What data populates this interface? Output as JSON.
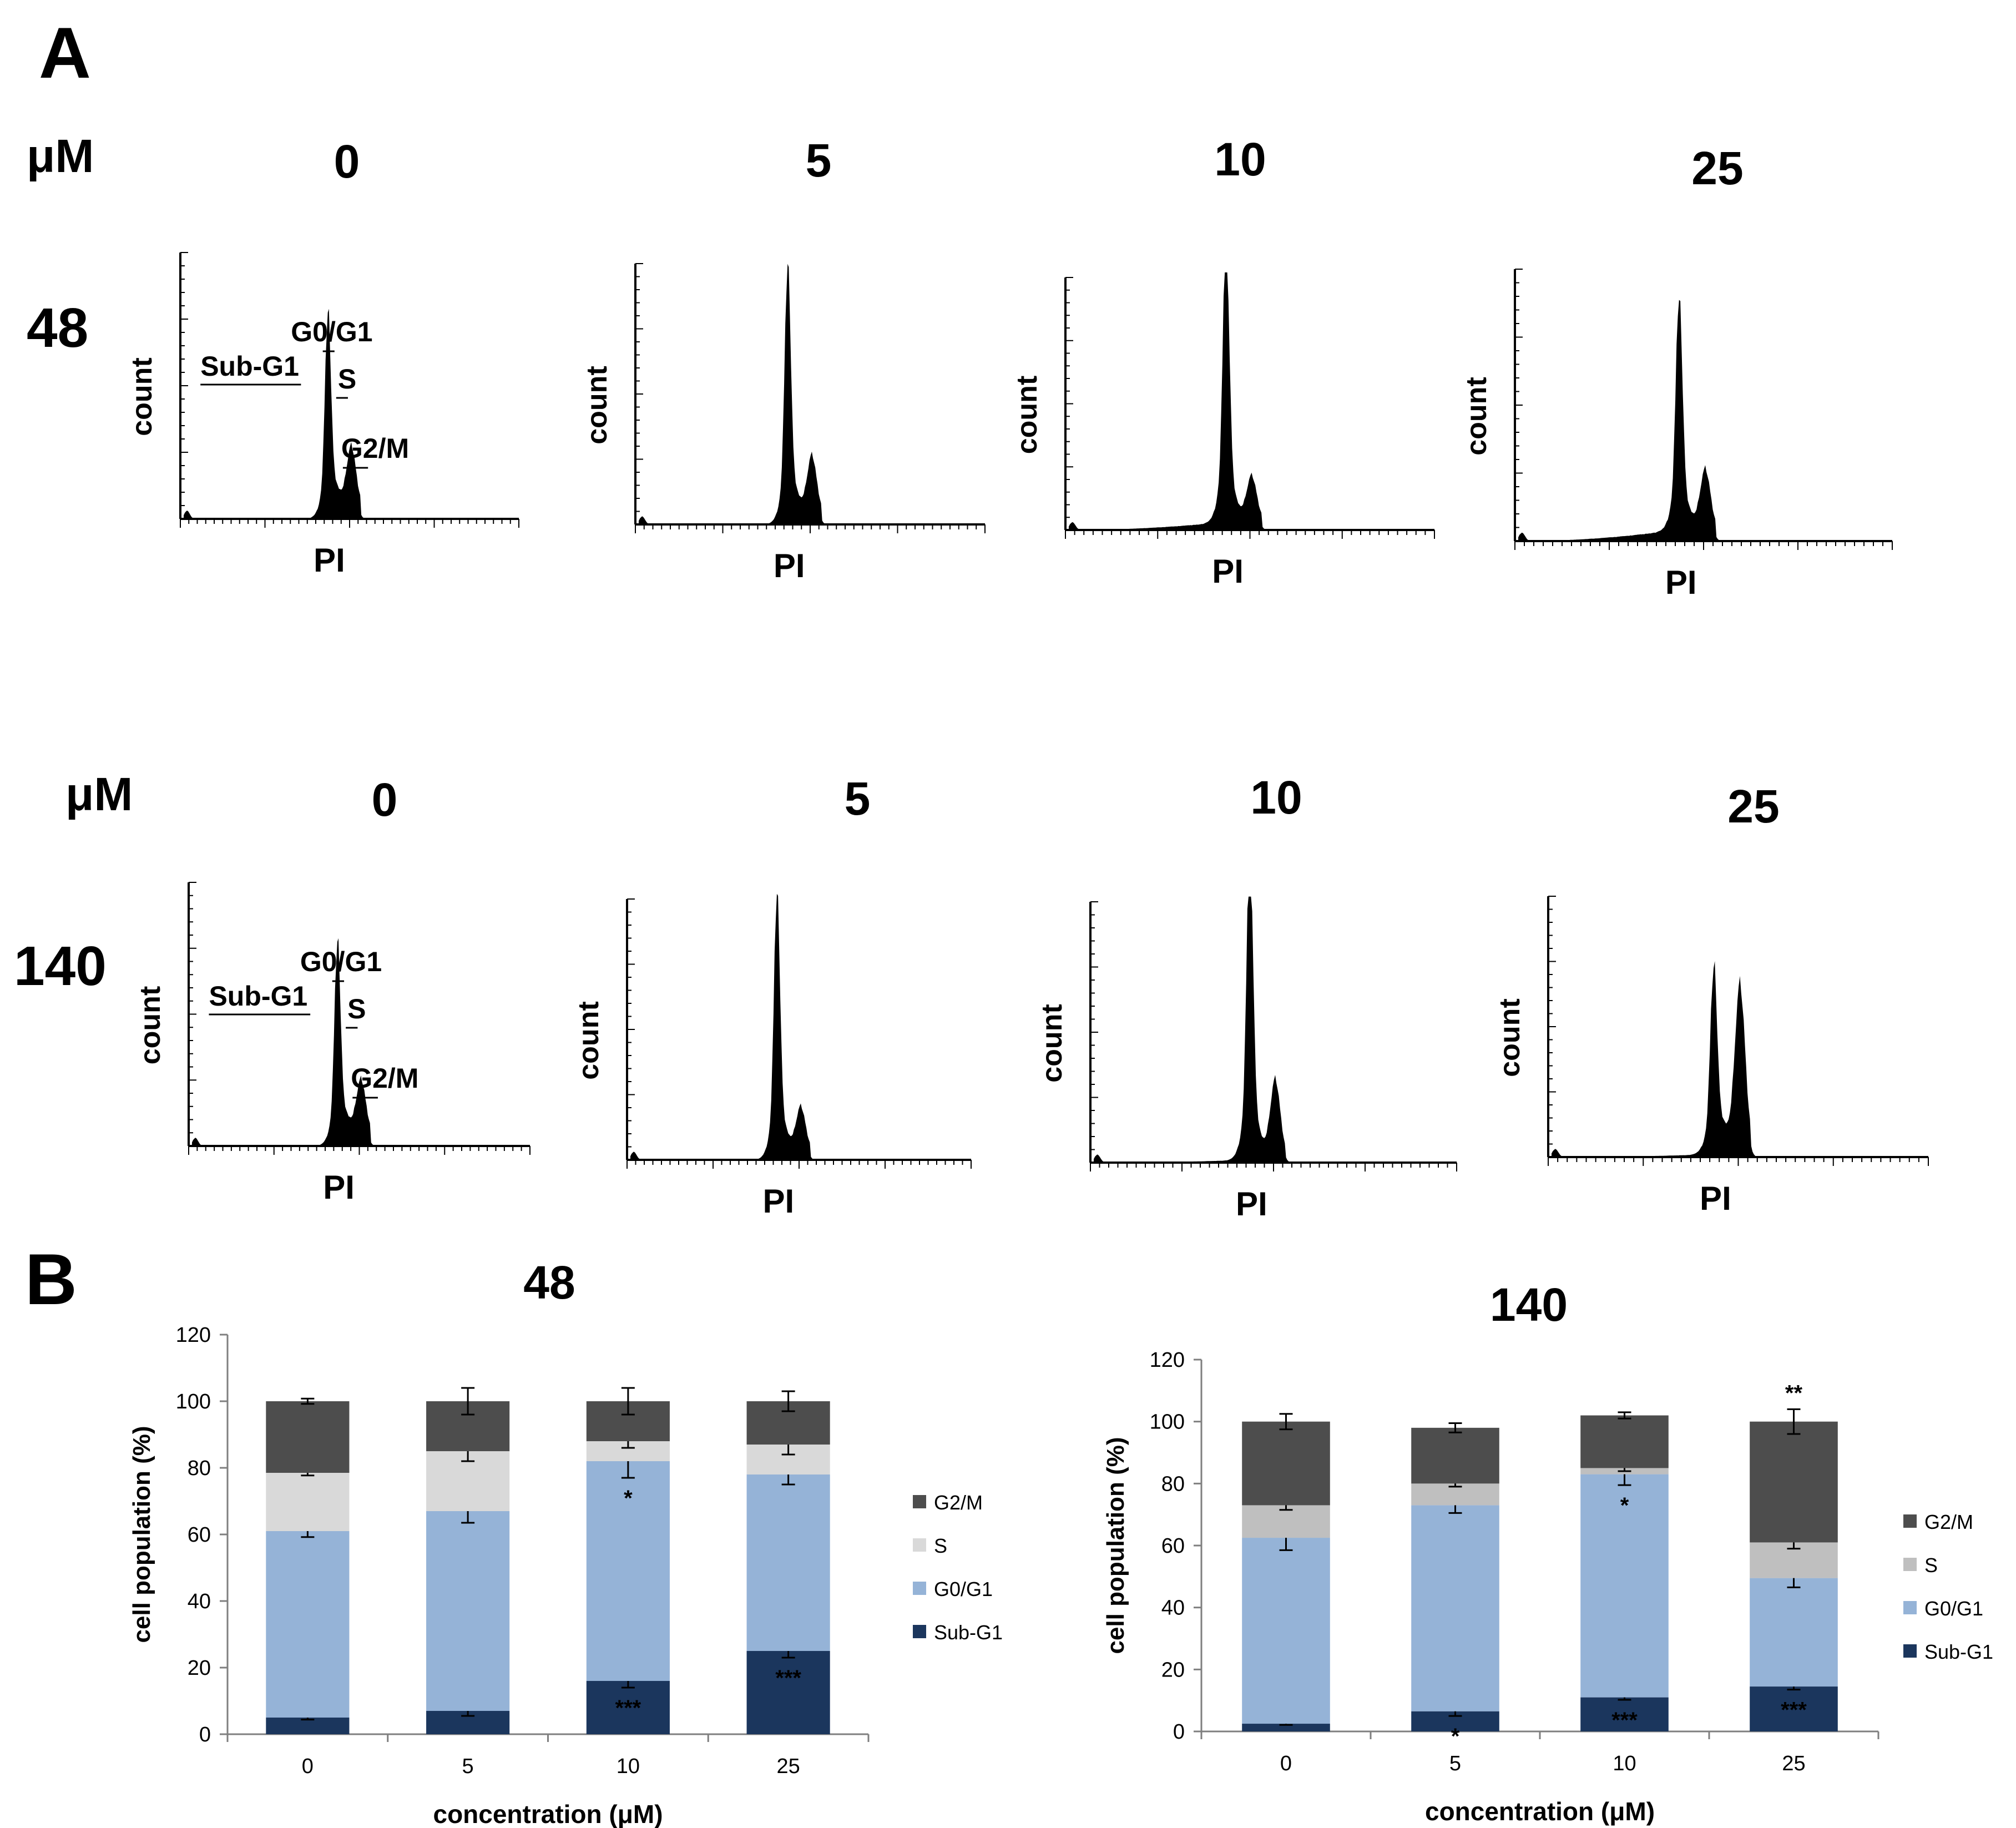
{
  "panels": {
    "a_label": "A",
    "b_label": "B"
  },
  "histograms": {
    "unit_label": "μM",
    "y_label": "count",
    "x_label": "PI",
    "concentrations": [
      "0",
      "5",
      "10",
      "25"
    ],
    "rows": [
      {
        "row_label": "48",
        "phase_labels": {
          "sub_g1": "Sub-G1",
          "g0_g1": "G0/G1",
          "s": "S",
          "g2_m": "G2/M"
        },
        "peak_profiles": [
          {
            "concentration": "0",
            "g1_height": 0.62,
            "g2_height": 0.2,
            "sub_g1_level": 0.0,
            "s_level": 0.08
          },
          {
            "concentration": "5",
            "g1_height": 0.8,
            "g2_height": 0.2,
            "sub_g1_level": 0.0,
            "s_level": 0.07
          },
          {
            "concentration": "10",
            "g1_height": 0.93,
            "g2_height": 0.16,
            "sub_g1_level": 0.03,
            "s_level": 0.06
          },
          {
            "concentration": "25",
            "g1_height": 0.71,
            "g2_height": 0.2,
            "sub_g1_level": 0.04,
            "s_level": 0.07
          }
        ]
      },
      {
        "row_label": "140",
        "phase_labels": {
          "sub_g1": "Sub-G1",
          "g0_g1": "G0/G1",
          "s": "S",
          "g2_m": "G2/M"
        },
        "peak_profiles": [
          {
            "concentration": "0",
            "g1_height": 0.62,
            "g2_height": 0.18,
            "sub_g1_level": 0.0,
            "s_level": 0.08
          },
          {
            "concentration": "5",
            "g1_height": 0.83,
            "g2_height": 0.15,
            "sub_g1_level": 0.0,
            "s_level": 0.06
          },
          {
            "concentration": "10",
            "g1_height": 1.0,
            "g2_height": 0.27,
            "sub_g1_level": 0.01,
            "s_level": 0.05
          },
          {
            "concentration": "25",
            "g1_height": 0.58,
            "g2_height": 0.57,
            "sub_g1_level": 0.01,
            "s_level": 0.09
          }
        ]
      }
    ]
  },
  "colors": {
    "sub_g1": "#1b365d",
    "g0_g1": "#95b3d7",
    "s_48": "#d9d9d9",
    "s_140": "#bfbfbf",
    "g2_m": "#4d4d4d",
    "axis": "#7f7f7f"
  },
  "chart_data": [
    {
      "type": "bar",
      "stacked": true,
      "title": "48",
      "xlabel": "concentration (μM)",
      "ylabel": "cell population (%)",
      "ylim": [
        0,
        120
      ],
      "yticks": [
        0,
        20,
        40,
        60,
        80,
        100,
        120
      ],
      "categories": [
        "0",
        "5",
        "10",
        "25"
      ],
      "series": [
        {
          "name": "Sub-G1",
          "values": [
            5,
            7,
            16,
            25
          ],
          "errors": [
            0.6,
            1.5,
            2,
            2
          ],
          "annotations": [
            "",
            "",
            "***",
            "***"
          ]
        },
        {
          "name": "G0/G1",
          "values": [
            56,
            60,
            66,
            53
          ],
          "errors": [
            1.8,
            3.5,
            5,
            3
          ],
          "annotations": [
            "",
            "",
            "*",
            ""
          ]
        },
        {
          "name": "S",
          "values": [
            17.5,
            18,
            6,
            9
          ],
          "errors": [
            0.8,
            3,
            2,
            3
          ],
          "annotations": [
            "",
            "",
            "",
            ""
          ]
        },
        {
          "name": "G2/M",
          "values": [
            21.5,
            15,
            12,
            13
          ],
          "errors": [
            0.8,
            4,
            4,
            3
          ],
          "annotations": [
            "",
            "",
            "",
            ""
          ]
        }
      ],
      "legend": [
        "G2/M",
        "S",
        "G0/G1",
        "Sub-G1"
      ],
      "legend_position": "right"
    },
    {
      "type": "bar",
      "stacked": true,
      "title": "140",
      "xlabel": "concentration (μM)",
      "ylabel": "cell population (%)",
      "ylim": [
        0,
        120
      ],
      "yticks": [
        0,
        20,
        40,
        60,
        80,
        100,
        120
      ],
      "categories": [
        "0",
        "5",
        "10",
        "25"
      ],
      "series": [
        {
          "name": "Sub-G1",
          "values": [
            2.5,
            6.5,
            11,
            14.5
          ],
          "errors": [
            0.4,
            1.5,
            0.8,
            1
          ],
          "annotations": [
            "",
            "*",
            "***",
            "***"
          ]
        },
        {
          "name": "G0/G1",
          "values": [
            60,
            66.5,
            72,
            35
          ],
          "errors": [
            4,
            2.5,
            3.5,
            3
          ],
          "annotations": [
            "",
            "",
            "*",
            ""
          ]
        },
        {
          "name": "S",
          "values": [
            10.5,
            7,
            2,
            11.5
          ],
          "errors": [
            1.5,
            1,
            1,
            2
          ],
          "annotations": [
            "",
            "",
            "",
            ""
          ]
        },
        {
          "name": "G2/M",
          "values": [
            27,
            18,
            17,
            39
          ],
          "errors": [
            2.5,
            1.5,
            1,
            4
          ],
          "annotations": [
            "",
            "",
            "",
            "**"
          ]
        }
      ],
      "legend": [
        "G2/M",
        "S",
        "G0/G1",
        "Sub-G1"
      ],
      "legend_position": "right"
    }
  ]
}
